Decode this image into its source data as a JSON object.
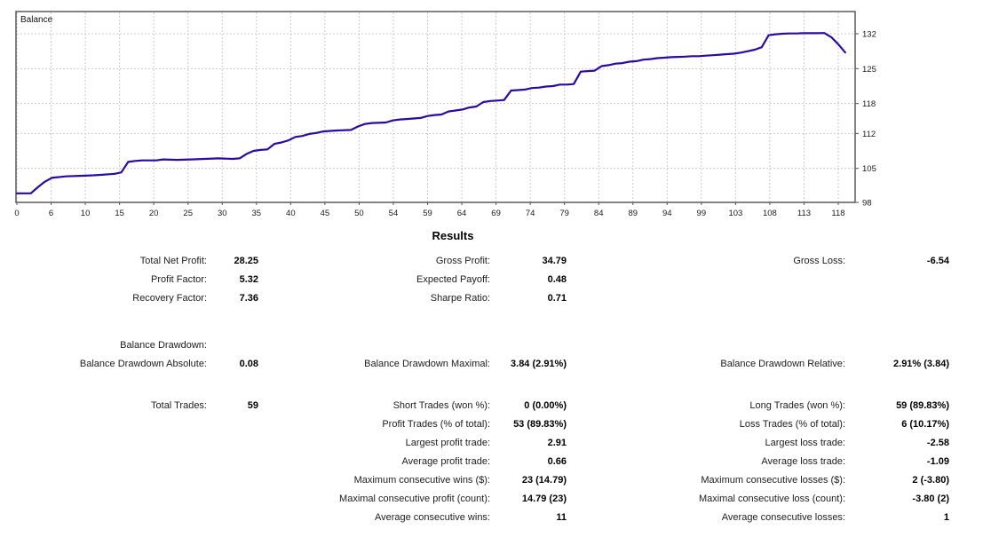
{
  "chart_data": {
    "type": "line",
    "title": "Balance",
    "legend": [
      "Balance"
    ],
    "xlabel": "",
    "ylabel": "",
    "xlim": [
      0,
      119
    ],
    "ylim": [
      98,
      132
    ],
    "grid": "dashed",
    "line_color": "#2A0AA0",
    "grid_color": "#cbcbcb",
    "border_color": "#5a5a5a",
    "axis_text_color": "#1a1a1a",
    "x_tick_labels": [
      "0",
      "6",
      "10",
      "15",
      "20",
      "25",
      "30",
      "35",
      "40",
      "45",
      "50",
      "54",
      "59",
      "64",
      "69",
      "74",
      "79",
      "84",
      "89",
      "94",
      "99",
      "103",
      "108",
      "113",
      "118"
    ],
    "y_tick_labels": [
      "132",
      "125",
      "118",
      "112",
      "105",
      "98"
    ],
    "y_tick_values": [
      132,
      125,
      118,
      112,
      105,
      98
    ],
    "points": [
      [
        0,
        100
      ],
      [
        2,
        100
      ],
      [
        3,
        101.2
      ],
      [
        4,
        102.3
      ],
      [
        5,
        103.1
      ],
      [
        7,
        103.4
      ],
      [
        9,
        103.5
      ],
      [
        11,
        103.6
      ],
      [
        12,
        103.7
      ],
      [
        14,
        103.9
      ],
      [
        15,
        104.2
      ],
      [
        16,
        106.3
      ],
      [
        17,
        106.5
      ],
      [
        18,
        106.6
      ],
      [
        20,
        106.6
      ],
      [
        21,
        106.8
      ],
      [
        23,
        106.7
      ],
      [
        25,
        106.8
      ],
      [
        27,
        106.9
      ],
      [
        29,
        107
      ],
      [
        31,
        106.9
      ],
      [
        32,
        107
      ],
      [
        33,
        107.9
      ],
      [
        34,
        108.5
      ],
      [
        35,
        108.7
      ],
      [
        36,
        108.8
      ],
      [
        37,
        109.9
      ],
      [
        38,
        110.2
      ],
      [
        39,
        110.6
      ],
      [
        40,
        111.3
      ],
      [
        41,
        111.5
      ],
      [
        42,
        111.9
      ],
      [
        43,
        112.1
      ],
      [
        44,
        112.4
      ],
      [
        45,
        112.5
      ],
      [
        46,
        112.6
      ],
      [
        48,
        112.7
      ],
      [
        49,
        113.4
      ],
      [
        50,
        113.9
      ],
      [
        51,
        114.1
      ],
      [
        53,
        114.2
      ],
      [
        54,
        114.6
      ],
      [
        55,
        114.8
      ],
      [
        56,
        114.9
      ],
      [
        57,
        115
      ],
      [
        58,
        115.1
      ],
      [
        59,
        115.5
      ],
      [
        60,
        115.7
      ],
      [
        61,
        115.8
      ],
      [
        62,
        116.4
      ],
      [
        63,
        116.6
      ],
      [
        64,
        116.8
      ],
      [
        65,
        117.2
      ],
      [
        66,
        117.4
      ],
      [
        67,
        118.3
      ],
      [
        68,
        118.5
      ],
      [
        69,
        118.6
      ],
      [
        70,
        118.7
      ],
      [
        71,
        120.6
      ],
      [
        72,
        120.7
      ],
      [
        73,
        120.8
      ],
      [
        74,
        121.1
      ],
      [
        75,
        121.2
      ],
      [
        76,
        121.4
      ],
      [
        77,
        121.5
      ],
      [
        78,
        121.8
      ],
      [
        79,
        121.8
      ],
      [
        80,
        121.9
      ],
      [
        81,
        124.4
      ],
      [
        82,
        124.5
      ],
      [
        83,
        124.6
      ],
      [
        84,
        125.5
      ],
      [
        85,
        125.7
      ],
      [
        86,
        126
      ],
      [
        87,
        126.1
      ],
      [
        88,
        126.4
      ],
      [
        89,
        126.5
      ],
      [
        90,
        126.8
      ],
      [
        91,
        126.9
      ],
      [
        92,
        127.1
      ],
      [
        93,
        127.2
      ],
      [
        94,
        127.3
      ],
      [
        95,
        127.35
      ],
      [
        96,
        127.4
      ],
      [
        97,
        127.5
      ],
      [
        98,
        127.5
      ],
      [
        99,
        127.6
      ],
      [
        100,
        127.7
      ],
      [
        101,
        127.8
      ],
      [
        102,
        127.9
      ],
      [
        103,
        128
      ],
      [
        104,
        128.2
      ],
      [
        105,
        128.5
      ],
      [
        106,
        128.8
      ],
      [
        107,
        129.3
      ],
      [
        108,
        131.7
      ],
      [
        109,
        131.9
      ],
      [
        110,
        132
      ],
      [
        111,
        132.05
      ],
      [
        112,
        132.05
      ],
      [
        113,
        132.1
      ],
      [
        114,
        132.1
      ],
      [
        115,
        132.1
      ],
      [
        116,
        132.15
      ],
      [
        117,
        131.3
      ],
      [
        118,
        129.9
      ],
      [
        119,
        128.25
      ]
    ]
  },
  "results": {
    "title": "Results",
    "rows": [
      {
        "gap": 0,
        "cells": [
          "Total Net Profit:",
          "28.25",
          "Gross Profit:",
          "34.79",
          "Gross Loss:",
          "-6.54"
        ]
      },
      {
        "gap": 0,
        "cells": [
          "Profit Factor:",
          "5.32",
          "Expected Payoff:",
          "0.48",
          "",
          ""
        ]
      },
      {
        "gap": 0,
        "cells": [
          "Recovery Factor:",
          "7.36",
          "Sharpe Ratio:",
          "0.71",
          "",
          ""
        ]
      },
      {
        "gap": 32,
        "cells": [
          "Balance Drawdown:",
          "",
          "",
          "",
          "",
          ""
        ]
      },
      {
        "gap": 0,
        "cells": [
          "Balance Drawdown Absolute:",
          "0.08",
          "Balance Drawdown Maximal:",
          "3.84 (2.91%)",
          "Balance Drawdown Relative:",
          "2.91% (3.84)"
        ]
      },
      {
        "gap": 26,
        "cells": [
          "Total Trades:",
          "59",
          "Short Trades (won %):",
          "0 (0.00%)",
          "Long Trades (won %):",
          "59 (89.83%)"
        ]
      },
      {
        "gap": 0,
        "cells": [
          "",
          "",
          "Profit Trades (% of total):",
          "53 (89.83%)",
          "Loss Trades (% of total):",
          "6 (10.17%)"
        ]
      },
      {
        "gap": 0,
        "cells": [
          "",
          "",
          "Largest profit trade:",
          "2.91",
          "Largest loss trade:",
          "-2.58"
        ]
      },
      {
        "gap": 0,
        "cells": [
          "",
          "",
          "Average profit trade:",
          "0.66",
          "Average loss trade:",
          "-1.09"
        ]
      },
      {
        "gap": 0,
        "cells": [
          "",
          "",
          "Maximum consecutive wins ($):",
          "23 (14.79)",
          "Maximum consecutive losses ($):",
          "2 (-3.80)"
        ]
      },
      {
        "gap": 0,
        "cells": [
          "",
          "",
          "Maximal consecutive profit (count):",
          "14.79 (23)",
          "Maximal consecutive loss (count):",
          "-3.80 (2)"
        ]
      },
      {
        "gap": 0,
        "cells": [
          "",
          "",
          "Average consecutive wins:",
          "11",
          "Average consecutive losses:",
          "1"
        ]
      }
    ]
  }
}
